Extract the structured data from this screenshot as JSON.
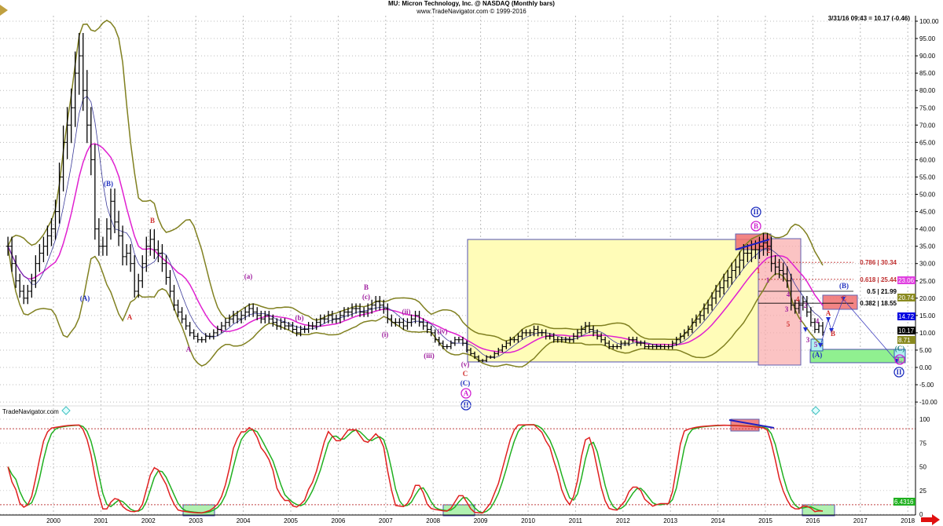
{
  "header": {
    "title": "MU:  Micron Technology, Inc. @ NASDAQ  (Monthly bars)",
    "subtitle": "www.TradeNavigator.com © 1999-2016",
    "quote": "3/31/16 09:43 = 10.17 (-0.46)",
    "brand": "TradeNavigator.com"
  },
  "chart_data": [
    {
      "type": "bar",
      "subtype": "monthly OHLC bars with moving averages and Bollinger bands",
      "start_month": "1999-01",
      "end_month": "2016-03",
      "closes": [
        35,
        30,
        25,
        22,
        20,
        22,
        25,
        30,
        33,
        35,
        38,
        40,
        45,
        55,
        65,
        70,
        75,
        85,
        90,
        80,
        70,
        60,
        40,
        35,
        35,
        40,
        48,
        42,
        38,
        32,
        33,
        30,
        22,
        25,
        30,
        35,
        37,
        34,
        33,
        30,
        26,
        22,
        18,
        16,
        14,
        12,
        10,
        9,
        8,
        8,
        9,
        9,
        10,
        11,
        12,
        13,
        14,
        15,
        14,
        15,
        16,
        17,
        16,
        15,
        14,
        15,
        14,
        13,
        12,
        13,
        12,
        12,
        11,
        10,
        11,
        11,
        12,
        12,
        13,
        14,
        14,
        15,
        14,
        14,
        15,
        16,
        16,
        17,
        17,
        16,
        16,
        17,
        18,
        19,
        18,
        17,
        14,
        13,
        13,
        13,
        12,
        13,
        14,
        15,
        13,
        12,
        11,
        10,
        8,
        7,
        6,
        6,
        7,
        8,
        8,
        7,
        5,
        4,
        3,
        2,
        2,
        3,
        3,
        4,
        5,
        6,
        7,
        8,
        8,
        9,
        10,
        10,
        10,
        11,
        10,
        10,
        9,
        9,
        8,
        8,
        8,
        8,
        8,
        9,
        10,
        11,
        12,
        11,
        10,
        9,
        8,
        7,
        6,
        6,
        6,
        7,
        7,
        8,
        8,
        7,
        7,
        6,
        6,
        6,
        6,
        6,
        6,
        6,
        7,
        8,
        9,
        10,
        11,
        13,
        14,
        15,
        17,
        18,
        20,
        22,
        23,
        25,
        26,
        28,
        29,
        31,
        33,
        33,
        34,
        34,
        35,
        36,
        35,
        30,
        29,
        28,
        27,
        25,
        18,
        17,
        18,
        19,
        16,
        13,
        11,
        12,
        10.17
      ],
      "y_ticks": [
        "100.00",
        "95.00",
        "90.00",
        "85.00",
        "80.00",
        "75.00",
        "70.00",
        "65.00",
        "60.00",
        "55.00",
        "50.00",
        "45.00",
        "40.00",
        "35.00",
        "30.00",
        "25.00",
        "20.00",
        "15.00",
        "10.00",
        "5.00",
        "0.00",
        "-5.00",
        "-10.00"
      ],
      "ylim": [
        -10,
        100
      ],
      "x_ticks": [
        "2000",
        "2001",
        "2002",
        "2003",
        "2004",
        "2005",
        "2006",
        "2007",
        "2008",
        "2009",
        "2010",
        "2011",
        "2012",
        "2013",
        "2014",
        "2015",
        "2016",
        "2017",
        "2018"
      ],
      "grid": true,
      "colors": {
        "bars": "#000000",
        "ma_fast": "#3a3a9a",
        "ma_slow": "#e020d0",
        "bands": "#808020"
      },
      "price_tags": [
        {
          "value": "23.06",
          "color": "#e040e0"
        },
        {
          "value": "20.74",
          "color": "#8a8a20"
        },
        {
          "value": "14.72",
          "color": "#0000e0"
        },
        {
          "value": "10.17",
          "color": "#000000"
        },
        {
          "value": "8.71",
          "color": "#8a8a20"
        }
      ],
      "fib_levels": [
        {
          "label": "0.786 | 30.34",
          "value": 30.34,
          "color": "#c03030"
        },
        {
          "label": "0.618 | 25.44",
          "value": 25.44,
          "color": "#c03030"
        },
        {
          "label": "0.5 | 21.99",
          "value": 21.99,
          "color": "#000000"
        },
        {
          "label": "0.382 | 18.55",
          "value": 18.55,
          "color": "#000000"
        }
      ],
      "wave_labels": [
        {
          "text": "(A)",
          "color": "#2030c0"
        },
        {
          "text": "(B)",
          "color": "#2030c0"
        },
        {
          "text": "A",
          "color": "#d03030"
        },
        {
          "text": "B",
          "color": "#d03030"
        },
        {
          "text": "A",
          "color": "#a020a0"
        },
        {
          "text": "(a)",
          "color": "#a020a0"
        },
        {
          "text": "(b)",
          "color": "#a020a0"
        },
        {
          "text": "B",
          "color": "#a020a0"
        },
        {
          "text": "(c)",
          "color": "#a020a0"
        },
        {
          "text": "(i)",
          "color": "#a020a0"
        },
        {
          "text": "(ii)",
          "color": "#a020a0"
        },
        {
          "text": "(iii)",
          "color": "#a020a0"
        },
        {
          "text": "(iv)",
          "color": "#a020a0"
        },
        {
          "text": "(v)",
          "color": "#a020a0"
        },
        {
          "text": "C",
          "color": "#d03030"
        },
        {
          "text": "(C)",
          "color": "#2030c0"
        },
        {
          "text": "A",
          "color": "#d020d0",
          "circled": true
        },
        {
          "text": "II",
          "color": "#2030c0",
          "circled": true
        },
        {
          "text": "II",
          "color": "#2030c0",
          "circled": true
        },
        {
          "text": "B",
          "color": "#d020d0",
          "circled": true
        },
        {
          "text": "A",
          "color": "#d03030"
        },
        {
          "text": "B",
          "color": "#d03030"
        },
        {
          "text": "(B)",
          "color": "#2030c0"
        },
        {
          "text": "C",
          "color": "#d03030"
        },
        {
          "text": "(C)",
          "color": "#208080"
        },
        {
          "text": "C",
          "color": "#d020d0",
          "circled": true
        },
        {
          "text": "II",
          "color": "#2030c0",
          "circled": true
        },
        {
          "text": "1",
          "color": "#d03030"
        },
        {
          "text": "2",
          "color": "#d03030"
        },
        {
          "text": "1",
          "color": "#a020a0"
        },
        {
          "text": "3",
          "color": "#a020a0"
        },
        {
          "text": "4",
          "color": "#a020a0"
        },
        {
          "text": "5",
          "color": "#d03030"
        },
        {
          "text": "4",
          "color": "#d03030"
        },
        {
          "text": "2",
          "color": "#a020a0"
        },
        {
          "text": "1",
          "color": "#a020a0"
        },
        {
          "text": "3",
          "color": "#a020a0"
        },
        {
          "text": "4",
          "color": "#a020a0"
        },
        {
          "text": "5",
          "color": "#a020a0"
        },
        {
          "text": "(A)",
          "color": "#2030c0"
        }
      ]
    },
    {
      "type": "line",
      "subtype": "stochastic oscillator",
      "y_ticks": [
        "100",
        "75",
        "50",
        "25",
        "0"
      ],
      "ylim": [
        0,
        100
      ],
      "reference_lines": [
        90,
        10
      ],
      "last_value": "6.4316",
      "colors": {
        "k": "#e02020",
        "d": "#20b020",
        "last_tag": "#20b020"
      }
    }
  ],
  "icons": {
    "diamond": "diamond-marker-icon",
    "scroll": "arrow-right-icon"
  }
}
